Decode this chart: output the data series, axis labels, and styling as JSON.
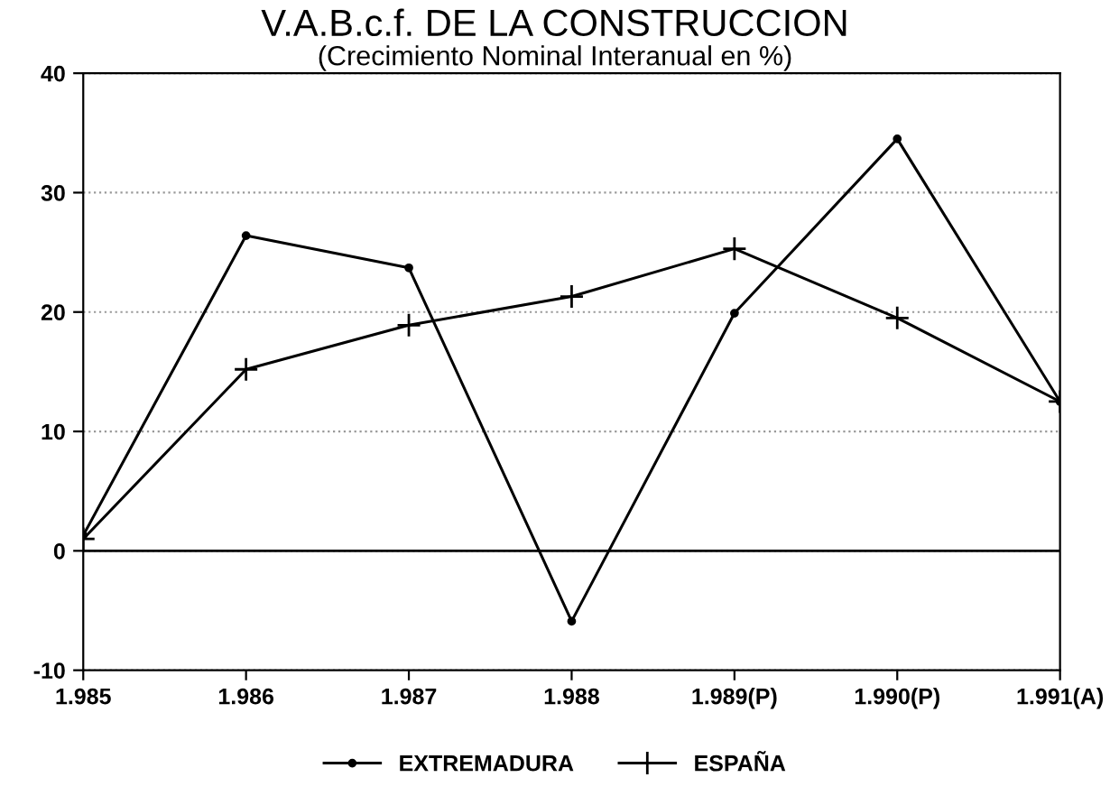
{
  "chart_data": {
    "type": "line",
    "title": "V.A.B.c.f. DE LA CONSTRUCCION",
    "subtitle": "(Crecimiento Nominal Interanual en %)",
    "categories": [
      "1.985",
      "1.986",
      "1.987",
      "1.988",
      "1.989(P)",
      "1.990(P)",
      "1.991(A)"
    ],
    "series": [
      {
        "name": "EXTREMADURA",
        "color": "#000000",
        "marker": "circle",
        "values": [
          1.3,
          26.4,
          23.7,
          -5.9,
          19.9,
          34.5,
          12.5
        ]
      },
      {
        "name": "ESPAÑA",
        "color": "#000000",
        "marker": "cross",
        "values": [
          1.0,
          15.2,
          18.9,
          21.3,
          25.3,
          19.5,
          12.5
        ]
      }
    ],
    "ylim": [
      -10,
      40
    ],
    "yticks": [
      -10,
      0,
      10,
      20,
      30,
      40
    ],
    "ref_lines": [
      {
        "axis": "y",
        "value": 0,
        "label": null
      }
    ],
    "grid": "y",
    "legend": "bottom",
    "line_style": "solid"
  }
}
